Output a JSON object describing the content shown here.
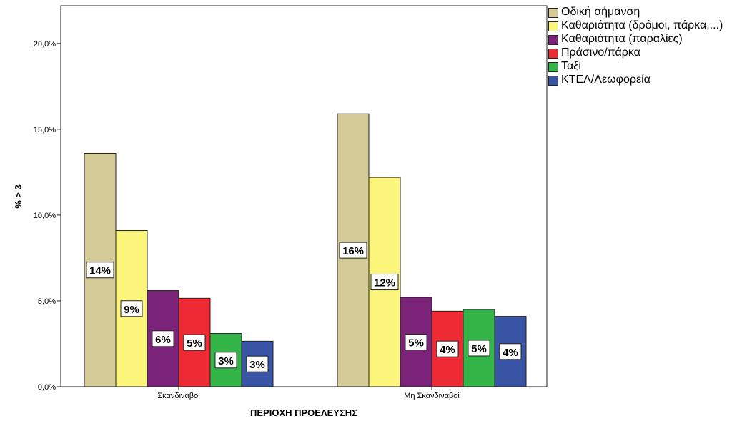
{
  "chart_data": {
    "type": "bar",
    "ylabel": "% > 3",
    "xlabel": "ΠΕΡΙΟΧΗ ΠΡΟΕΛΕΥΣΗΣ",
    "ylim": [
      0,
      22.2
    ],
    "yticks": [
      "0,0%",
      "5,0%",
      "10,0%",
      "15,0%",
      "20,0%"
    ],
    "ytick_values": [
      0,
      5,
      10,
      15,
      20
    ],
    "categories": [
      "Σκανδιναβοί",
      "Μη Σκανδιναβοί"
    ],
    "legend_position": "right",
    "series": [
      {
        "name": "Οδική σήμανση",
        "color": "#d4cb98",
        "values": [
          13.6,
          15.9
        ],
        "labels": [
          "14%",
          "16%"
        ]
      },
      {
        "name": "Καθαριότητα (δρόμοι, πάρκα,...)",
        "color": "#fbf67b",
        "values": [
          9.1,
          12.2
        ],
        "labels": [
          "9%",
          "12%"
        ]
      },
      {
        "name": "Καθαριότητα (παραλίες)",
        "color": "#7b2279",
        "values": [
          5.6,
          5.2
        ],
        "labels": [
          "6%",
          "5%"
        ]
      },
      {
        "name": "Πράσινο/πάρκα",
        "color": "#ee2b35",
        "values": [
          5.15,
          4.4
        ],
        "labels": [
          "5%",
          "4%"
        ]
      },
      {
        "name": "Ταξί",
        "color": "#33b548",
        "values": [
          3.1,
          4.5
        ],
        "labels": [
          "3%",
          "5%"
        ]
      },
      {
        "name": "ΚΤΕΛ/Λεωφορεία",
        "color": "#3b55a6",
        "values": [
          2.65,
          4.1
        ],
        "labels": [
          "3%",
          "4%"
        ]
      }
    ]
  }
}
